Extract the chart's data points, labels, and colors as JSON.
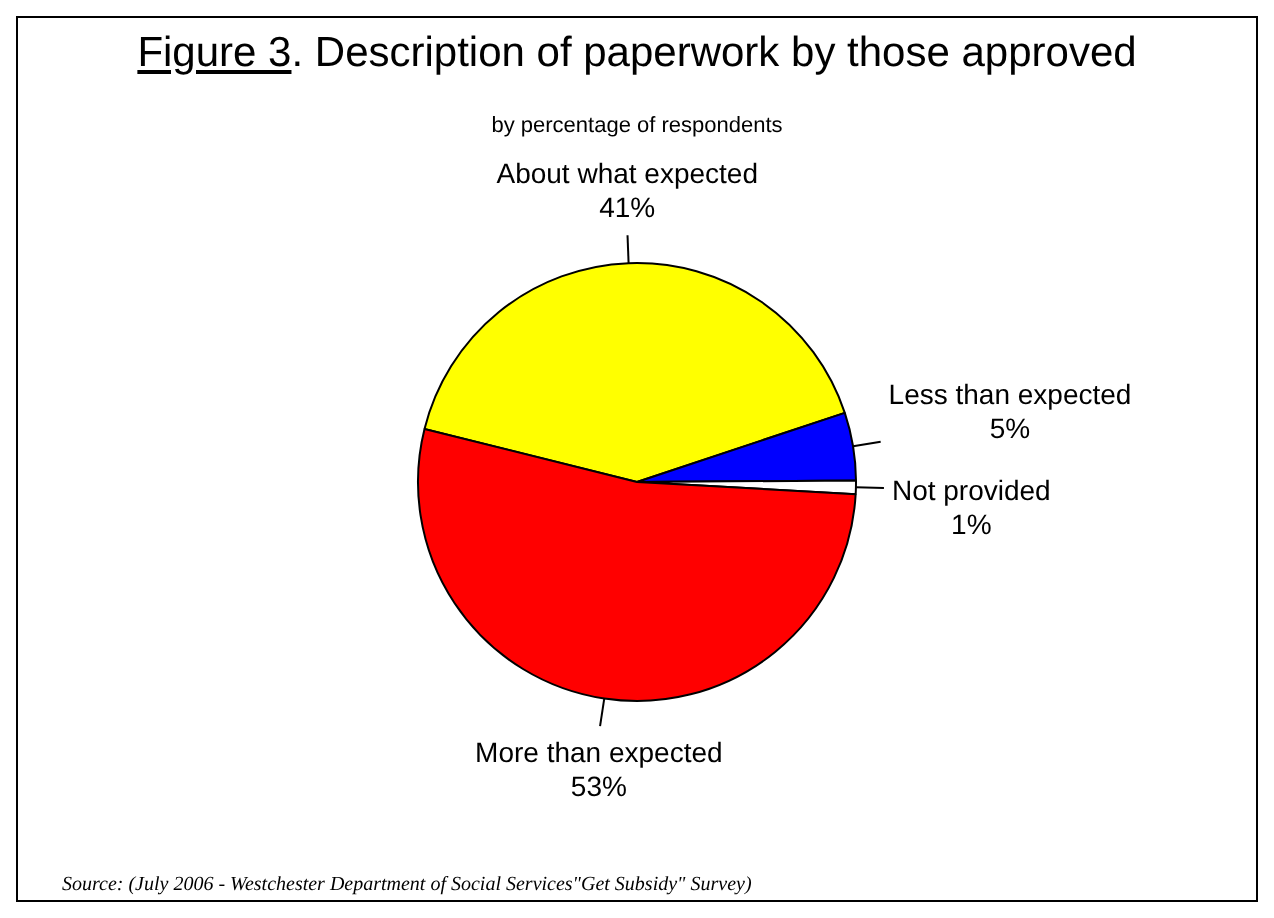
{
  "chart_data": {
    "type": "pie",
    "title": "Figure 3. Description of paperwork by those approved",
    "subtitle": "by percentage of respondents",
    "categories": [
      "About what expected",
      "Less than expected",
      "Not provided",
      "More than expected"
    ],
    "values": [
      41,
      5,
      1,
      53
    ],
    "value_labels": [
      "41%",
      "5%",
      "1%",
      "53%"
    ],
    "colors": [
      "#ffff00",
      "#0000ff",
      "#ffffff",
      "#ff0000"
    ],
    "legend": false,
    "annotations": [
      "Source: (July 2006 - Westchester Department of Social Services\"Get Subsidy\" Survey)"
    ]
  }
}
